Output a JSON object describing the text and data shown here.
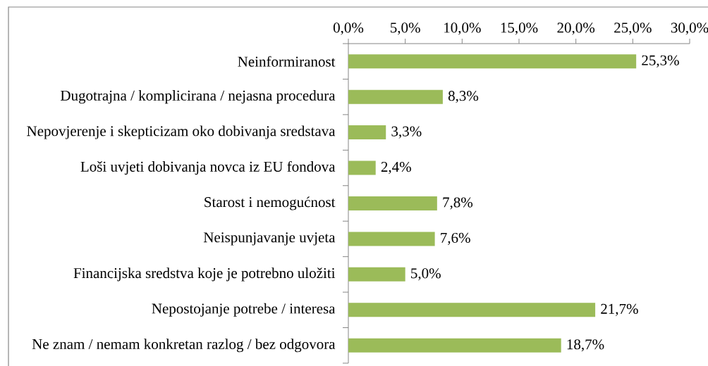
{
  "chart_data": {
    "type": "bar",
    "orientation": "horizontal",
    "categories": [
      "Neinformiranost",
      "Dugotrajna / komplicirana / nejasna procedura",
      "Nepovjerenje i skepticizam oko dobivanja sredstava",
      "Loši uvjeti dobivanja novca iz EU fondova",
      "Starost i nemogućnost",
      "Neispunjavanje uvjeta",
      "Financijska sredstva koje je potrebno uložiti",
      "Nepostojanje potrebe / interesa",
      "Ne znam / nemam konkretan razlog / bez odgovora"
    ],
    "values": [
      25.3,
      8.3,
      3.3,
      2.4,
      7.8,
      7.6,
      5.0,
      21.7,
      18.7
    ],
    "value_labels": [
      "25,3%",
      "8,3%",
      "3,3%",
      "2,4%",
      "7,8%",
      "7,6%",
      "5,0%",
      "21,7%",
      "18,7%"
    ],
    "color": "#9bbb59",
    "xlim": [
      0,
      30
    ],
    "xticks": [
      {
        "value": 0,
        "label": "0,0%"
      },
      {
        "value": 5,
        "label": "5,0%"
      },
      {
        "value": 10,
        "label": "10,0%"
      },
      {
        "value": 15,
        "label": "15,0%"
      },
      {
        "value": 20,
        "label": "20,0%"
      },
      {
        "value": 25,
        "label": "25,0%"
      },
      {
        "value": 30,
        "label": "30,0%"
      }
    ]
  }
}
